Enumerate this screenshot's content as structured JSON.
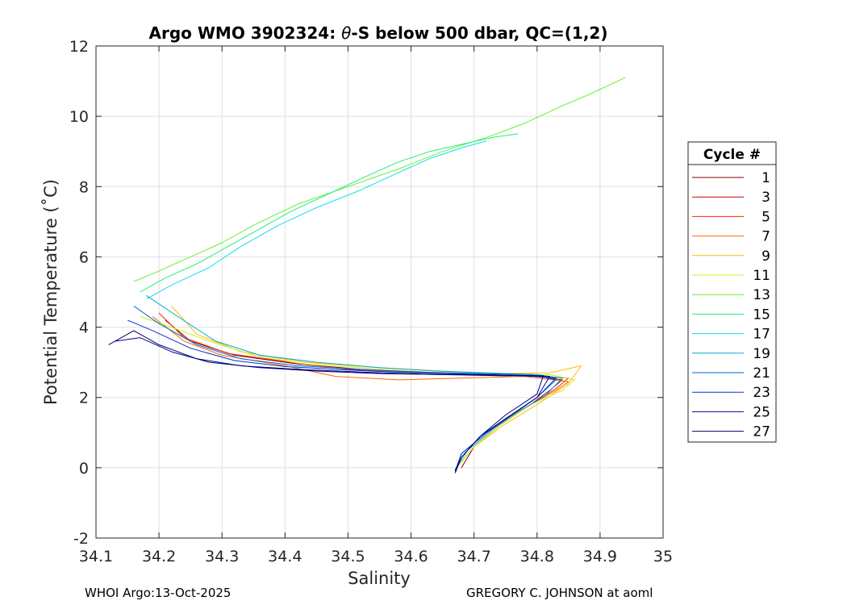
{
  "chart_data": {
    "type": "line",
    "title_prefix": "Argo WMO 3902324: ",
    "title_theta": "θ",
    "title_suffix": "-S below 500 dbar,  QC=(1,2)",
    "xlabel": "Salinity",
    "ylabel": "Potential Temperature (˚C)",
    "xlim": [
      34.1,
      35.0
    ],
    "ylim": [
      -2,
      12
    ],
    "xticks": [
      "34.1",
      "34.2",
      "34.3",
      "34.4",
      "34.5",
      "34.6",
      "34.7",
      "34.8",
      "34.9",
      "35"
    ],
    "yticks": [
      "-2",
      "0",
      "2",
      "4",
      "6",
      "8",
      "10",
      "12"
    ],
    "grid": true,
    "legend": {
      "title": "Cycle #",
      "placement": "right",
      "entries": [
        "1",
        "3",
        "5",
        "7",
        "9",
        "11",
        "13",
        "15",
        "17",
        "19",
        "21",
        "23",
        "25",
        "27"
      ],
      "colors": [
        "#800000",
        "#cc0000",
        "#ff2200",
        "#ff6600",
        "#ffbb00",
        "#ccee22",
        "#66ee33",
        "#22ee77",
        "#11ddee",
        "#00aacc",
        "#0066dd",
        "#0033cc",
        "#000099",
        "#000066"
      ]
    },
    "series": [
      {
        "name": "1",
        "salinity": [
          34.21,
          34.25,
          34.32,
          34.42,
          34.52,
          34.62,
          34.72,
          34.8,
          34.84,
          34.82,
          34.79,
          34.74,
          34.7,
          34.68
        ],
        "theta": [
          4.2,
          3.6,
          3.2,
          2.95,
          2.8,
          2.7,
          2.65,
          2.6,
          2.5,
          2.2,
          1.8,
          1.2,
          0.6,
          0.0
        ]
      },
      {
        "name": "5",
        "salinity": [
          34.2,
          34.24,
          34.31,
          34.41,
          34.5,
          34.6,
          34.7,
          34.79,
          34.85,
          34.83,
          34.79,
          34.74,
          34.7,
          34.67
        ],
        "theta": [
          4.4,
          3.7,
          3.25,
          3.0,
          2.8,
          2.72,
          2.66,
          2.62,
          2.55,
          2.25,
          1.8,
          1.2,
          0.6,
          -0.05
        ]
      },
      {
        "name": "7",
        "salinity": [
          34.19,
          34.24,
          34.3,
          34.4,
          34.48,
          34.58,
          34.68,
          34.78,
          34.85,
          34.83,
          34.78,
          34.74,
          34.7,
          34.67
        ],
        "theta": [
          4.3,
          3.6,
          3.2,
          2.9,
          2.6,
          2.5,
          2.55,
          2.6,
          2.45,
          2.2,
          1.7,
          1.2,
          0.6,
          -0.05
        ]
      },
      {
        "name": "9",
        "salinity": [
          34.22,
          34.26,
          34.33,
          34.43,
          34.55,
          34.65,
          34.75,
          34.82,
          34.87,
          34.85,
          34.8,
          34.75,
          34.7,
          34.67
        ],
        "theta": [
          4.6,
          3.8,
          3.3,
          3.0,
          2.85,
          2.75,
          2.68,
          2.7,
          2.9,
          2.4,
          1.8,
          1.25,
          0.6,
          -0.05
        ]
      },
      {
        "name": "11",
        "salinity": [
          34.17,
          34.22,
          34.28,
          34.35,
          34.43,
          34.52,
          34.6,
          34.68,
          34.76,
          34.82,
          34.86,
          34.84,
          34.79,
          34.74,
          34.7,
          34.67
        ],
        "theta": [
          4.3,
          4.0,
          3.6,
          3.2,
          2.95,
          2.85,
          2.75,
          2.65,
          2.6,
          2.65,
          2.5,
          2.2,
          1.8,
          1.2,
          0.6,
          -0.05
        ]
      },
      {
        "name": "13",
        "salinity": [
          34.16,
          34.2,
          34.25,
          34.3,
          34.35,
          34.42,
          34.5,
          34.58,
          34.65,
          34.72,
          34.78,
          34.84,
          34.88,
          34.94
        ],
        "theta": [
          5.3,
          5.6,
          6.0,
          6.4,
          6.9,
          7.5,
          8.0,
          8.5,
          9.0,
          9.4,
          9.8,
          10.3,
          10.6,
          11.1
        ]
      },
      {
        "name": "15",
        "salinity": [
          34.17,
          34.21,
          34.26,
          34.3,
          34.35,
          34.41,
          34.47,
          34.53,
          34.58,
          34.63,
          34.68,
          34.73,
          34.77
        ],
        "theta": [
          5.0,
          5.4,
          5.8,
          6.2,
          6.7,
          7.3,
          7.8,
          8.3,
          8.7,
          9.0,
          9.2,
          9.4,
          9.5
        ]
      },
      {
        "name": "17",
        "salinity": [
          34.18,
          34.22,
          34.28,
          34.33,
          34.39,
          34.45,
          34.52,
          34.58,
          34.63,
          34.68,
          34.72
        ],
        "theta": [
          4.8,
          5.2,
          5.7,
          6.3,
          6.9,
          7.4,
          7.9,
          8.4,
          8.8,
          9.1,
          9.3
        ]
      },
      {
        "name": "19",
        "salinity": [
          34.18,
          34.23,
          34.29,
          34.36,
          34.45,
          34.55,
          34.64,
          34.72,
          34.8,
          34.84,
          34.81,
          34.77,
          34.73,
          34.69,
          34.67
        ],
        "theta": [
          4.9,
          4.3,
          3.6,
          3.2,
          3.0,
          2.85,
          2.75,
          2.7,
          2.65,
          2.55,
          2.0,
          1.6,
          1.1,
          0.5,
          -0.05
        ]
      },
      {
        "name": "21",
        "salinity": [
          34.16,
          34.2,
          34.26,
          34.33,
          34.42,
          34.52,
          34.62,
          34.71,
          34.79,
          34.83,
          34.8,
          34.76,
          34.72,
          34.68,
          34.67
        ],
        "theta": [
          4.6,
          4.1,
          3.5,
          3.1,
          2.9,
          2.8,
          2.72,
          2.68,
          2.65,
          2.5,
          2.0,
          1.5,
          1.0,
          0.4,
          -0.1
        ]
      },
      {
        "name": "23",
        "salinity": [
          34.15,
          34.19,
          34.25,
          34.32,
          34.4,
          34.5,
          34.6,
          34.7,
          34.78,
          34.83,
          34.8,
          34.76,
          34.72,
          34.68,
          34.67
        ],
        "theta": [
          4.2,
          3.9,
          3.4,
          3.05,
          2.88,
          2.78,
          2.7,
          2.66,
          2.62,
          2.55,
          2.0,
          1.5,
          1.0,
          0.4,
          -0.1
        ]
      },
      {
        "name": "25",
        "salinity": [
          34.13,
          34.17,
          34.22,
          34.28,
          34.36,
          34.45,
          34.55,
          34.65,
          34.74,
          34.82,
          34.8,
          34.75,
          34.71,
          34.68,
          34.67
        ],
        "theta": [
          3.6,
          3.7,
          3.3,
          3.0,
          2.85,
          2.75,
          2.68,
          2.65,
          2.62,
          2.6,
          2.0,
          1.4,
          0.9,
          0.3,
          -0.1
        ]
      },
      {
        "name": "27",
        "salinity": [
          34.12,
          34.16,
          34.2,
          34.26,
          34.33,
          34.42,
          34.52,
          34.62,
          34.72,
          34.81,
          34.8,
          34.75,
          34.71,
          34.68,
          34.67
        ],
        "theta": [
          3.5,
          3.9,
          3.5,
          3.1,
          2.9,
          2.8,
          2.72,
          2.66,
          2.64,
          2.62,
          2.1,
          1.5,
          0.9,
          0.3,
          -0.15
        ]
      }
    ]
  },
  "footer": {
    "left": "WHOI Argo:13-Oct-2025",
    "right": "GREGORY C. JOHNSON at aoml"
  }
}
